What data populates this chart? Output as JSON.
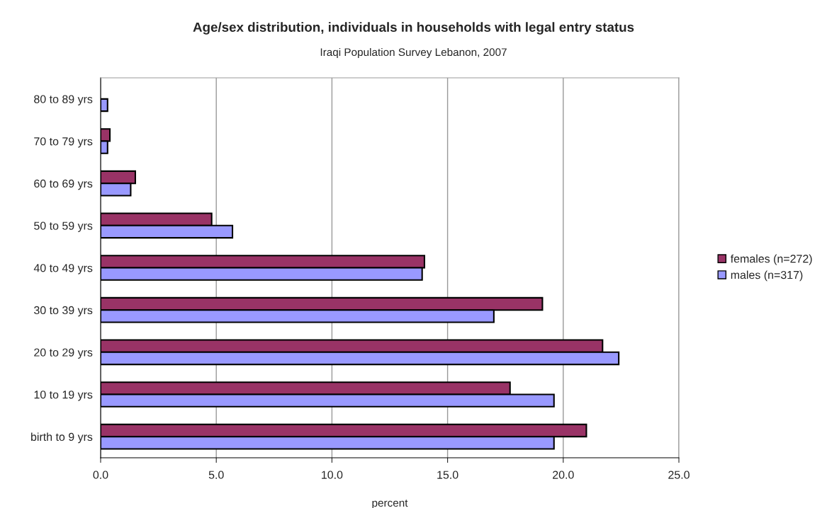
{
  "chart_data": {
    "type": "bar",
    "orientation": "horizontal",
    "title": "Age/sex distribution, individuals in households with legal entry status",
    "subtitle": "Iraqi Population Survey Lebanon, 2007",
    "xlabel": "percent",
    "categories": [
      "80 to 89 yrs",
      "70 to 79 yrs",
      "60 to 69 yrs",
      "50 to 59 yrs",
      "40 to 49 yrs",
      "30 to 39 yrs",
      "20 to 29 yrs",
      "10 to 19 yrs",
      "birth to 9 yrs"
    ],
    "series": [
      {
        "name": "females (n=272)",
        "color": "#993366",
        "values": [
          null,
          0.4,
          1.5,
          4.8,
          14.0,
          19.1,
          21.7,
          17.7,
          21.0
        ]
      },
      {
        "name": "males (n=317)",
        "color": "#9999ff",
        "values": [
          0.3,
          0.3,
          1.3,
          5.7,
          13.9,
          17.0,
          22.4,
          19.6,
          19.6
        ]
      }
    ],
    "xlim": [
      0,
      25
    ],
    "xticks": [
      {
        "value": 0,
        "label": "0.0"
      },
      {
        "value": 5,
        "label": "5.0"
      },
      {
        "value": 10,
        "label": "10.0"
      },
      {
        "value": 15,
        "label": "15.0"
      },
      {
        "value": 20,
        "label": "20.0"
      },
      {
        "value": 25,
        "label": "25.0"
      }
    ],
    "grid": "x",
    "legend": "right"
  }
}
